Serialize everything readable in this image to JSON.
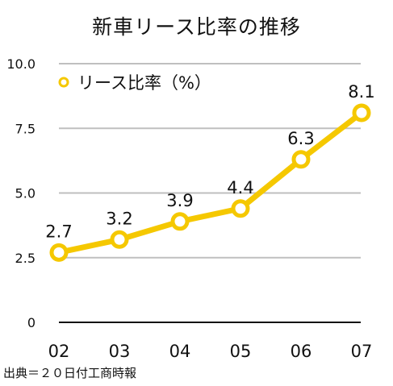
{
  "chart_data": {
    "type": "line",
    "title": "新車リース比率の推移",
    "categories": [
      "02",
      "03",
      "04",
      "05",
      "06",
      "07"
    ],
    "series": [
      {
        "name": "リース比率（%）",
        "values": [
          2.7,
          3.2,
          3.9,
          4.4,
          6.3,
          8.1
        ]
      }
    ],
    "data_labels": [
      "2.7",
      "3.2",
      "3.9",
      "4.4",
      "6.3",
      "8.1"
    ],
    "yticks": [
      {
        "value": 0,
        "label": "0"
      },
      {
        "value": 2.5,
        "label": "2.5"
      },
      {
        "value": 5,
        "label": "5.0"
      },
      {
        "value": 7.5,
        "label": "7.5"
      },
      {
        "value": 10,
        "label": "10.0"
      }
    ],
    "ylim": [
      0,
      10
    ],
    "grid": true,
    "legend_position": "top-left",
    "line_color": "#F5C800",
    "grid_color": "#BFBFBF",
    "axis_color": "#111111",
    "source": "出典＝２０日付工商時報"
  }
}
